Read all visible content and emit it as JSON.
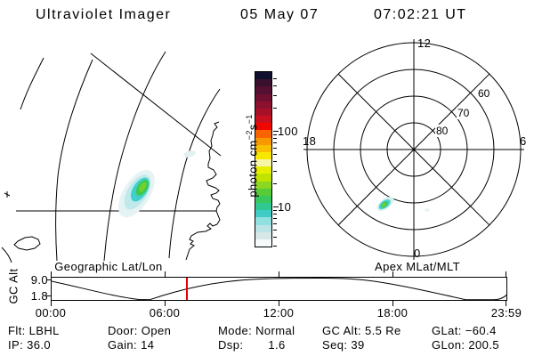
{
  "header": {
    "title": "Ultraviolet Imager",
    "date": "05 May 07",
    "time": "07:02:21 UT"
  },
  "colorbar": {
    "unit_prefix": "photon cm",
    "exp1": "−2",
    "unit_mid": "s",
    "exp2": "−1",
    "tick_100": "100",
    "tick_10": "10",
    "scale": "log",
    "colors": [
      "#10102e",
      "#38102e",
      "#541030",
      "#701030",
      "#8c1030",
      "#a81028",
      "#c81020",
      "#f00800",
      "#f86400",
      "#f89800",
      "#f8c000",
      "#f8e800",
      "#f8f4a8",
      "#e8ee00",
      "#c0e400",
      "#8cd820",
      "#58cc38",
      "#38c85c",
      "#30c890",
      "#40ccc4",
      "#90e0e0",
      "#bce4e6",
      "#d8e8e8",
      "#f6fafa"
    ]
  },
  "map_panel": {
    "caption": "Geographic Lat/Lon"
  },
  "polar_panel": {
    "caption": "Apex MLat/MLT",
    "mlt_top": "12",
    "mlt_left": "18",
    "mlt_right": "6",
    "mlt_bottom": "0",
    "mlat_80": "80",
    "mlat_70": "70",
    "mlat_60": "60"
  },
  "timeline": {
    "ylabel": "GC Alt",
    "ymax": "9.0",
    "ymin": "1.8",
    "xticks": [
      "00:00",
      "06:00",
      "12:00",
      "18:00",
      "23:59"
    ],
    "cursor_time": "07:02",
    "cursor_color": "#e00000"
  },
  "status": {
    "rows": [
      [
        "Flt: LBHL",
        "Door: Open",
        "Mode: Normal",
        "GC Alt: 5.5 Re",
        "GLat: −60.4"
      ],
      [
        "IP: 36.0",
        "Gain: 14",
        "Dsp:       1.6",
        "Seq: 39",
        "GLon: 200.5"
      ]
    ]
  },
  "chart_data": [
    {
      "type": "heatmap",
      "title": "Geographic Lat/Lon",
      "description": "UVI auroral image projected on geographic lat/lon grid with coastline; one bright elongated emission patch (green core ~30-60, cyan halo ~5-15 photon cm-2 s-1) tilted NE-SW near image center-left",
      "colorbar": {
        "label": "photon cm-2 s-1",
        "scale": "log",
        "tick_values": [
          10,
          100
        ]
      }
    },
    {
      "type": "heatmap",
      "title": "Apex MLat/MLT",
      "axes": {
        "mlt_ring_labels": [
          "12",
          "18",
          "6",
          "0"
        ],
        "mlat_circle_labels": [
          80,
          70,
          60
        ],
        "outer_circle_mlat": 50
      },
      "description": "Polar MLat/MLT dial (12 top, 18 left, 6 right, 0 bottom) with small emission patch near 20-21 MLT at ~62-66 MLat (lower-left quadrant)"
    },
    {
      "type": "line",
      "title": "GC Alt",
      "ylabel": "GC Alt",
      "yticks": [
        9.0,
        1.8
      ],
      "xticks_hours": [
        "00:00",
        "06:00",
        "12:00",
        "18:00",
        "23:59"
      ],
      "cursor_hour": "07:02",
      "cursor_value_re": 5.5,
      "x_hours": [
        0,
        1,
        2,
        3,
        4,
        4.5,
        5,
        6,
        7.03,
        8,
        10,
        12,
        13,
        14,
        16,
        18,
        20,
        21,
        22,
        23,
        23.98
      ],
      "y_values_approx": [
        8.0,
        6.6,
        5.1,
        3.6,
        2.2,
        1.8,
        2.1,
        4.2,
        5.5,
        6.5,
        7.9,
        8.8,
        9.0,
        9.0,
        8.4,
        7.2,
        4.9,
        3.3,
        2.0,
        1.8,
        3.2
      ]
    }
  ]
}
